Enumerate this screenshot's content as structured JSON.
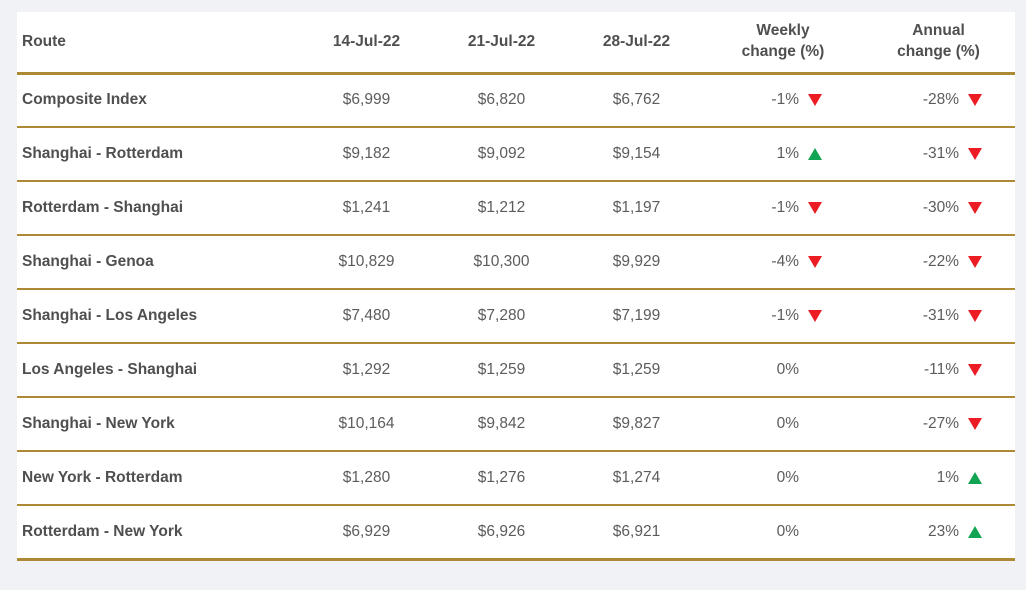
{
  "colors": {
    "page_bg": "#f0f2f5",
    "table_bg": "#ffffff",
    "border_gold": "#ad8936",
    "text_bold": "#4f4f4f",
    "text_value": "#5c5c5c",
    "up_green": "#13a453",
    "down_red": "#ec1c24"
  },
  "chart_data": {
    "type": "table",
    "columns": [
      "Route",
      "14-Jul-22",
      "21-Jul-22",
      "28-Jul-22",
      "Weekly\nchange (%)",
      "Annual\nchange (%)"
    ],
    "rows": [
      {
        "route": "Composite Index",
        "v1": "$6,999",
        "v2": "$6,820",
        "v3": "$6,762",
        "weekly": {
          "value": "-1%",
          "dir": "down"
        },
        "annual": {
          "value": "-28%",
          "dir": "down"
        }
      },
      {
        "route": "Shanghai - Rotterdam",
        "v1": "$9,182",
        "v2": "$9,092",
        "v3": "$9,154",
        "weekly": {
          "value": "1%",
          "dir": "up"
        },
        "annual": {
          "value": "-31%",
          "dir": "down"
        }
      },
      {
        "route": "Rotterdam - Shanghai",
        "v1": "$1,241",
        "v2": "$1,212",
        "v3": "$1,197",
        "weekly": {
          "value": "-1%",
          "dir": "down"
        },
        "annual": {
          "value": "-30%",
          "dir": "down"
        }
      },
      {
        "route": "Shanghai - Genoa",
        "v1": "$10,829",
        "v2": "$10,300",
        "v3": "$9,929",
        "weekly": {
          "value": "-4%",
          "dir": "down"
        },
        "annual": {
          "value": "-22%",
          "dir": "down"
        }
      },
      {
        "route": "Shanghai - Los Angeles",
        "v1": "$7,480",
        "v2": "$7,280",
        "v3": "$7,199",
        "weekly": {
          "value": "-1%",
          "dir": "down"
        },
        "annual": {
          "value": "-31%",
          "dir": "down"
        }
      },
      {
        "route": "Los Angeles - Shanghai",
        "v1": "$1,292",
        "v2": "$1,259",
        "v3": "$1,259",
        "weekly": {
          "value": "0%",
          "dir": "none"
        },
        "annual": {
          "value": "-11%",
          "dir": "down"
        }
      },
      {
        "route": "Shanghai - New York",
        "v1": "$10,164",
        "v2": "$9,842",
        "v3": "$9,827",
        "weekly": {
          "value": "0%",
          "dir": "none"
        },
        "annual": {
          "value": "-27%",
          "dir": "down"
        }
      },
      {
        "route": "New York - Rotterdam",
        "v1": "$1,280",
        "v2": "$1,276",
        "v3": "$1,274",
        "weekly": {
          "value": "0%",
          "dir": "none"
        },
        "annual": {
          "value": "1%",
          "dir": "up"
        }
      },
      {
        "route": "Rotterdam - New York",
        "v1": "$6,929",
        "v2": "$6,926",
        "v3": "$6,921",
        "weekly": {
          "value": "0%",
          "dir": "none"
        },
        "annual": {
          "value": "23%",
          "dir": "up"
        }
      }
    ]
  }
}
